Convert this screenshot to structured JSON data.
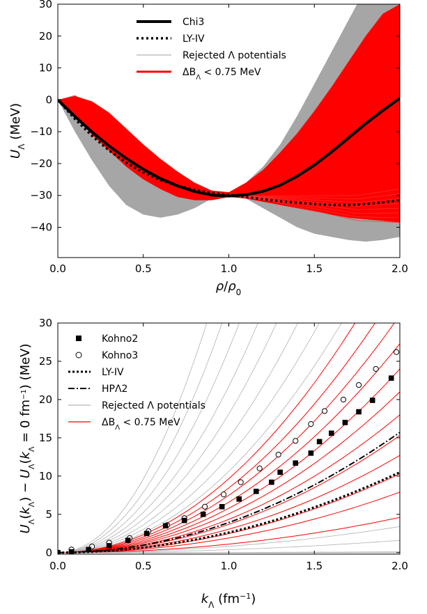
{
  "chart_data": [
    {
      "type": "line",
      "xlabel": "ρ/ρ₀",
      "ylabel": "U_Λ (MeV)",
      "xlim": [
        0,
        2.0
      ],
      "ylim": [
        -50,
        30
      ],
      "x_ticks": [
        "0.0",
        "0.5",
        "1.0",
        "1.5",
        "2.0"
      ],
      "y_ticks": [
        "30",
        "20",
        "10",
        "0",
        "−10",
        "−20",
        "−30",
        "−40"
      ],
      "x_tick_values": [
        0,
        0.5,
        1.0,
        1.5,
        2.0
      ],
      "y_tick_values": [
        30,
        20,
        10,
        0,
        -10,
        -20,
        -30,
        -40
      ],
      "legend_position": "top-center",
      "legend": [
        {
          "label": "Chi3",
          "style": "solid-thick",
          "color": "#000000"
        },
        {
          "label": "LY-IV",
          "style": "dotted",
          "color": "#000000"
        },
        {
          "label": "Rejected Λ potentials",
          "style": "thin",
          "color": "#a0a0a0"
        },
        {
          "label": "ΔB_Λ < 0.75 MeV",
          "style": "solid",
          "color": "#ff0000"
        }
      ],
      "series": [
        {
          "name": "Chi3",
          "x": [
            0,
            0.1,
            0.2,
            0.3,
            0.4,
            0.5,
            0.6,
            0.7,
            0.8,
            0.9,
            1.0,
            1.1,
            1.2,
            1.3,
            1.4,
            1.5,
            1.6,
            1.7,
            1.8,
            1.9,
            2.0
          ],
          "y": [
            0,
            -5.2,
            -10.1,
            -14.5,
            -18.4,
            -21.8,
            -24.7,
            -27.0,
            -28.8,
            -29.9,
            -30.2,
            -29.8,
            -28.7,
            -26.8,
            -24.0,
            -20.5,
            -16.4,
            -12.0,
            -7.5,
            -3.4,
            0.5
          ]
        },
        {
          "name": "LY-IV",
          "x": [
            0,
            0.1,
            0.2,
            0.3,
            0.4,
            0.5,
            0.6,
            0.7,
            0.8,
            0.9,
            1.0,
            1.1,
            1.2,
            1.3,
            1.4,
            1.5,
            1.6,
            1.7,
            1.8,
            1.9,
            2.0
          ],
          "y": [
            0,
            -6.0,
            -11.3,
            -15.9,
            -19.7,
            -22.8,
            -25.2,
            -27.0,
            -28.3,
            -29.2,
            -29.8,
            -30.5,
            -31.2,
            -31.8,
            -32.3,
            -32.7,
            -33.0,
            -33.0,
            -32.7,
            -32.2,
            -31.5
          ]
        }
      ],
      "band_rejected": {
        "color": "#a0a0a0",
        "lower": [
          0,
          -10,
          -19,
          -27,
          -33,
          -36,
          -37,
          -36,
          -34,
          -31,
          -29,
          -31,
          -34,
          -37,
          -40,
          -42,
          -43,
          -44,
          -44.5,
          -44,
          -43
        ],
        "upper": [
          0,
          1.5,
          -1.5,
          -6,
          -11,
          -16,
          -20,
          -24,
          -27,
          -28.5,
          -29,
          -26,
          -21,
          -14,
          -5,
          5,
          15,
          25,
          35,
          45,
          55
        ]
      },
      "band_accepted": {
        "color": "#ff0000",
        "lower": [
          0,
          -5,
          -11,
          -16,
          -21,
          -25,
          -28,
          -30.5,
          -31.5,
          -31.5,
          -30.5,
          -31,
          -32,
          -33,
          -34,
          -35,
          -36,
          -37,
          -37.5,
          -38,
          -38.5
        ],
        "upper": [
          0,
          1.2,
          -0.5,
          -4,
          -9,
          -14,
          -18.5,
          -22.5,
          -26,
          -28.5,
          -29,
          -26,
          -22,
          -16.5,
          -10.5,
          -3.5,
          4,
          12,
          20,
          27,
          30
        ]
      }
    },
    {
      "type": "line",
      "xlabel": "k_Λ (fm⁻¹)",
      "ylabel": "U_Λ(k_Λ) − U_Λ(k_Λ = 0 fm⁻¹) (MeV)",
      "xlim": [
        0,
        2.0
      ],
      "ylim": [
        -1,
        30
      ],
      "x_ticks": [
        "0.0",
        "0.5",
        "1.0",
        "1.5",
        "2.0"
      ],
      "y_ticks": [
        "0",
        "5",
        "10",
        "15",
        "20",
        "25",
        "30"
      ],
      "x_tick_values": [
        0,
        0.5,
        1.0,
        1.5,
        2.0
      ],
      "y_tick_values": [
        0,
        5,
        10,
        15,
        20,
        25,
        30
      ],
      "legend_position": "top-left",
      "legend": [
        {
          "label": "Kohno2",
          "style": "square-marker",
          "color": "#000000"
        },
        {
          "label": "Kohno3",
          "style": "open-circle",
          "color": "#000000"
        },
        {
          "label": "LY-IV",
          "style": "dotted",
          "color": "#000000"
        },
        {
          "label": "HPΛ2",
          "style": "dash-dot",
          "color": "#000000"
        },
        {
          "label": "Rejected Λ potentials",
          "style": "thin",
          "color": "#a0a0a0"
        },
        {
          "label": "ΔB_Λ < 0.75 MeV",
          "style": "solid",
          "color": "#ff0000"
        }
      ],
      "series": [
        {
          "name": "Kohno2",
          "x": [
            0.0,
            0.08,
            0.18,
            0.3,
            0.41,
            0.52,
            0.63,
            0.74,
            0.85,
            0.96,
            1.06,
            1.16,
            1.25,
            1.3,
            1.39,
            1.48,
            1.53,
            1.6,
            1.68,
            1.76,
            1.84,
            1.95
          ],
          "y": [
            0.0,
            0.1,
            0.4,
            0.9,
            1.6,
            2.5,
            3.5,
            4.2,
            5.0,
            6.0,
            7.0,
            8.0,
            9.2,
            10.5,
            11.7,
            13.0,
            14.5,
            15.6,
            17.0,
            18.4,
            19.9,
            22.8
          ]
        },
        {
          "name": "Kohno3",
          "x": [
            0.0,
            0.08,
            0.2,
            0.3,
            0.42,
            0.53,
            0.64,
            0.74,
            0.86,
            0.97,
            1.07,
            1.18,
            1.29,
            1.39,
            1.48,
            1.56,
            1.67,
            1.76,
            1.86,
            1.98
          ],
          "y": [
            0.0,
            0.4,
            0.8,
            1.3,
            1.9,
            2.8,
            3.6,
            4.5,
            6.0,
            7.6,
            9.2,
            11.0,
            12.8,
            14.6,
            16.8,
            18.5,
            20.0,
            21.9,
            24.0,
            26.2
          ]
        },
        {
          "name": "LY-IV",
          "x": [
            0,
            0.1,
            0.2,
            0.3,
            0.4,
            0.5,
            0.6,
            0.7,
            0.8,
            0.9,
            1.0,
            1.1,
            1.2,
            1.3,
            1.4,
            1.5,
            1.6,
            1.7,
            1.8,
            1.9,
            2.0
          ],
          "y": [
            0,
            0.03,
            0.1,
            0.24,
            0.42,
            0.66,
            0.95,
            1.29,
            1.68,
            2.13,
            2.63,
            3.18,
            3.79,
            4.44,
            5.15,
            5.92,
            6.73,
            7.6,
            8.52,
            9.49,
            10.5
          ]
        },
        {
          "name": "HPΛ2",
          "x": [
            0,
            0.1,
            0.2,
            0.3,
            0.4,
            0.5,
            0.6,
            0.7,
            0.8,
            0.9,
            1.0,
            1.1,
            1.2,
            1.3,
            1.4,
            1.5,
            1.6,
            1.7,
            1.8,
            1.9,
            2.0
          ],
          "y": [
            0,
            0.04,
            0.16,
            0.35,
            0.63,
            0.98,
            1.41,
            1.92,
            2.51,
            3.18,
            3.93,
            4.75,
            5.66,
            6.64,
            7.7,
            8.84,
            10.06,
            11.36,
            12.73,
            14.19,
            15.7
          ]
        }
      ],
      "accepted_curve_endpoints": {
        "color": "#ff0000",
        "y_at_2": [
          4.6,
          7.9,
          10.3,
          12.7,
          15.3,
          18.0,
          21.0,
          24.0,
          27.3,
          31.0,
          35.0,
          40.0
        ]
      },
      "rejected_curve_endpoints": {
        "color": "#a0a0a0",
        "y_at_2": [
          0.1,
          1.6,
          3.4,
          44,
          52,
          62,
          75,
          90,
          110,
          135,
          165
        ]
      }
    }
  ]
}
